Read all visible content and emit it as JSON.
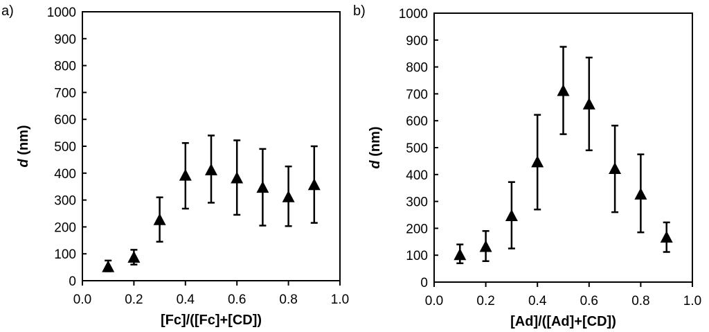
{
  "chart_data": [
    {
      "type": "scatter",
      "panel_label": "a)",
      "xlabel": "[Fc]/([Fc]+[CD])",
      "ylabel_italic": "d",
      "ylabel_rest": " (nm)",
      "xlim": [
        0.0,
        1.0
      ],
      "ylim": [
        0,
        1000
      ],
      "x_ticks": [
        "0.0",
        "0.2",
        "0.4",
        "0.6",
        "0.8",
        "1.0"
      ],
      "y_ticks": [
        "0",
        "100",
        "200",
        "300",
        "400",
        "500",
        "600",
        "700",
        "800",
        "900",
        "1000"
      ],
      "grid": false,
      "marker": "triangle",
      "series": [
        {
          "name": "d",
          "x": [
            0.1,
            0.2,
            0.3,
            0.4,
            0.5,
            0.6,
            0.7,
            0.8,
            0.9
          ],
          "y": [
            50,
            85,
            225,
            390,
            410,
            380,
            345,
            310,
            355
          ],
          "err_low": [
            35,
            60,
            145,
            268,
            290,
            245,
            205,
            203,
            215
          ],
          "err_high": [
            75,
            115,
            310,
            512,
            540,
            522,
            490,
            425,
            500
          ]
        }
      ]
    },
    {
      "type": "scatter",
      "panel_label": "b)",
      "xlabel": "[Ad]/([Ad]+[CD])",
      "ylabel_italic": "d",
      "ylabel_rest": " (nm)",
      "xlim": [
        0.0,
        1.0
      ],
      "ylim": [
        0,
        1000
      ],
      "x_ticks": [
        "0.0",
        "0.2",
        "0.4",
        "0.6",
        "0.8",
        "1.0"
      ],
      "y_ticks": [
        "0",
        "100",
        "200",
        "300",
        "400",
        "500",
        "600",
        "700",
        "800",
        "900",
        "1000"
      ],
      "grid": false,
      "marker": "triangle",
      "series": [
        {
          "name": "d",
          "x": [
            0.1,
            0.2,
            0.3,
            0.4,
            0.5,
            0.6,
            0.7,
            0.8,
            0.9
          ],
          "y": [
            100,
            130,
            245,
            445,
            710,
            660,
            420,
            325,
            165
          ],
          "err_low": [
            70,
            78,
            125,
            270,
            550,
            490,
            260,
            185,
            112
          ],
          "err_high": [
            140,
            190,
            372,
            622,
            875,
            835,
            582,
            475,
            222
          ]
        }
      ]
    }
  ]
}
